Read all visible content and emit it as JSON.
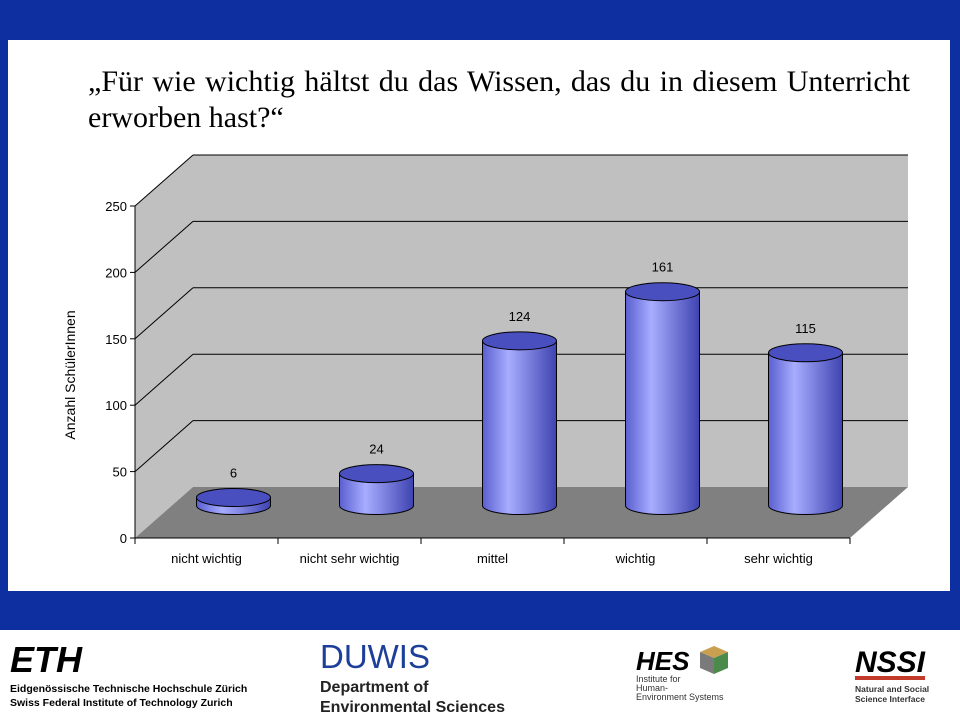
{
  "slide": {
    "question": "„Für wie wichtig hältst du das Wissen, das du in diesem Unterricht erworben hast?“"
  },
  "chart_data": {
    "type": "bar",
    "style": "3d-cylinder",
    "title": "",
    "xlabel": "",
    "ylabel": "Anzahl SchülerInnen",
    "ylim": [
      0,
      250
    ],
    "yticks": [
      "0",
      "50",
      "100",
      "150",
      "200",
      "250"
    ],
    "categories": [
      "nicht wichtig",
      "nicht sehr wichtig",
      "mittel",
      "wichtig",
      "sehr wichtig"
    ],
    "values": [
      6,
      24,
      124,
      161,
      115
    ],
    "grid": true,
    "legend": "none",
    "colors": {
      "bar": "#9aa0f6",
      "bar_dark": "#4a4fc0",
      "wall": "#c0c0c0",
      "floor": "#808080"
    }
  },
  "footer": {
    "eth": {
      "logo": "ETH",
      "line1": "Eidgenössische Technische Hochschule Zürich",
      "line2": "Swiss Federal Institute of Technology Zurich"
    },
    "duwis": {
      "logo": "DUWIS",
      "line1": "Department of",
      "line2": "Environmental Sciences"
    },
    "hes": {
      "logo": "HES",
      "line1": "Institute for",
      "line2": "Human-",
      "line3": "Environment Systems"
    },
    "nssi": {
      "logo": "NSSI",
      "line1": "Natural and Social",
      "line2": "Science Interface"
    }
  }
}
